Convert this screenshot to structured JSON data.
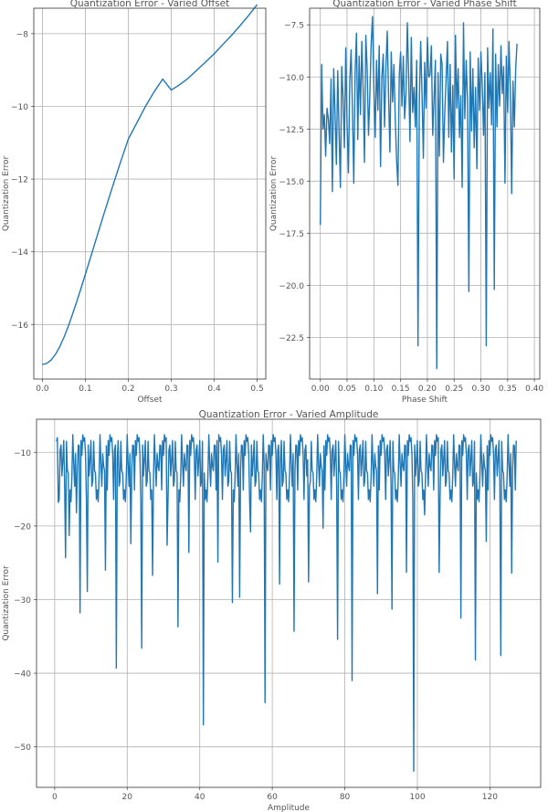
{
  "chart_data": [
    {
      "type": "line",
      "title": "Quantization Error - Varied Offset",
      "xlabel": "Offset",
      "ylabel": "Quantization Error",
      "xlim": [
        -0.02,
        0.52
      ],
      "ylim": [
        -17.5,
        -7.3
      ],
      "xticks": [
        0.0,
        0.1,
        0.2,
        0.3,
        0.4,
        0.5
      ],
      "xtick_labels": [
        "0.0",
        "0.1",
        "0.2",
        "0.3",
        "0.4",
        "0.5"
      ],
      "yticks": [
        -16,
        -14,
        -12,
        -10,
        -8
      ],
      "ytick_labels": [
        "−16",
        "−14",
        "−12",
        "−10",
        "−8"
      ],
      "grid": true,
      "color": "#1f77b4",
      "x": [
        0.0,
        0.01,
        0.02,
        0.03,
        0.04,
        0.05,
        0.06,
        0.07,
        0.08,
        0.09,
        0.1,
        0.12,
        0.14,
        0.16,
        0.18,
        0.2,
        0.22,
        0.24,
        0.26,
        0.28,
        0.3,
        0.32,
        0.34,
        0.36,
        0.38,
        0.4,
        0.42,
        0.44,
        0.46,
        0.48,
        0.5
      ],
      "y": [
        -17.1,
        -17.07,
        -16.98,
        -16.83,
        -16.62,
        -16.36,
        -16.06,
        -15.72,
        -15.37,
        -15.0,
        -14.62,
        -13.85,
        -13.08,
        -12.33,
        -11.6,
        -10.9,
        -10.45,
        -10.0,
        -9.6,
        -9.25,
        -9.55,
        -9.4,
        -9.22,
        -9.0,
        -8.78,
        -8.55,
        -8.3,
        -8.05,
        -7.78,
        -7.5,
        -7.2
      ]
    },
    {
      "type": "line",
      "title": "Quantization Error - Varied Phase Shift",
      "xlabel": "Phase Shift",
      "ylabel": "Quantization Error",
      "xlim": [
        -0.02,
        0.41
      ],
      "ylim": [
        -24.5,
        -6.7
      ],
      "xticks": [
        0.0,
        0.05,
        0.1,
        0.15,
        0.2,
        0.25,
        0.3,
        0.35,
        0.4
      ],
      "xtick_labels": [
        "0.00",
        "0.05",
        "0.10",
        "0.15",
        "0.20",
        "0.25",
        "0.30",
        "0.35",
        "0.40"
      ],
      "yticks": [
        -22.5,
        -20.0,
        -17.5,
        -15.0,
        -12.5,
        -10.0,
        -7.5
      ],
      "ytick_labels": [
        "−22.5",
        "−20.0",
        "−17.5",
        "−15.0",
        "−12.5",
        "−10.0",
        "−7.5"
      ],
      "grid": true,
      "color": "#1f77b4",
      "x_start": 0.0,
      "x_step": 0.0025,
      "y": [
        -17.1,
        -9.4,
        -12.5,
        -11.8,
        -13.8,
        -11.5,
        -12.0,
        -13.2,
        -10.1,
        -15.5,
        -9.6,
        -11.8,
        -14.2,
        -9.7,
        -12.6,
        -15.3,
        -9.5,
        -11.0,
        -13.4,
        -8.6,
        -12.3,
        -14.6,
        -10.2,
        -8.7,
        -11.5,
        -15.1,
        -9.8,
        -7.9,
        -13.0,
        -9.0,
        -11.8,
        -8.3,
        -10.6,
        -14.1,
        -8.0,
        -9.6,
        -12.8,
        -10.9,
        -8.4,
        -7.1,
        -10.5,
        -12.9,
        -9.2,
        -11.6,
        -8.5,
        -14.3,
        -10.0,
        -8.9,
        -12.4,
        -9.6,
        -7.8,
        -10.9,
        -13.6,
        -8.8,
        -11.2,
        -9.4,
        -12.0,
        -14.0,
        -15.2,
        -9.9,
        -8.8,
        -11.4,
        -9.0,
        -12.0,
        -10.8,
        -7.4,
        -9.9,
        -13.1,
        -8.1,
        -11.7,
        -10.5,
        -12.4,
        -9.2,
        -22.9,
        -11.1,
        -8.3,
        -10.8,
        -13.9,
        -9.3,
        -11.5,
        -8.1,
        -10.0,
        -9.9,
        -8.5,
        -12.8,
        -11.0,
        -9.2,
        -24.0,
        -9.8,
        -13.8,
        -8.9,
        -9.4,
        -14.1,
        -11.7,
        -10.1,
        -8.3,
        -12.9,
        -9.4,
        -13.6,
        -10.4,
        -14.9,
        -8.0,
        -11.5,
        -9.6,
        -12.9,
        -10.9,
        -15.3,
        -7.4,
        -12.0,
        -9.2,
        -11.1,
        -20.3,
        -8.8,
        -12.6,
        -9.6,
        -13.4,
        -10.5,
        -14.4,
        -9.1,
        -11.6,
        -8.8,
        -10.4,
        -12.8,
        -9.8,
        -22.9,
        -8.6,
        -11.5,
        -9.8,
        -12.3,
        -7.7,
        -20.2,
        -8.9,
        -12.4,
        -9.4,
        -11.4,
        -8.5,
        -10.8,
        -9.5,
        -15.1,
        -9.0,
        -11.7,
        -8.3,
        -10.6,
        -15.6,
        -10.2,
        -12.4,
        -9.6,
        -8.4
      ]
    },
    {
      "type": "line",
      "title": "Quantization Error - Varied Amplitude",
      "xlabel": "Amplitude",
      "ylabel": "Quantization Error",
      "xlim": [
        -5,
        134
      ],
      "ylim": [
        -55.5,
        -5.5
      ],
      "xticks": [
        0,
        20,
        40,
        60,
        80,
        100,
        120
      ],
      "xtick_labels": [
        "0",
        "20",
        "40",
        "60",
        "80",
        "100",
        "120"
      ],
      "yticks": [
        -50,
        -40,
        -30,
        -20,
        -10
      ],
      "ytick_labels": [
        "−50",
        "−40",
        "−30",
        "−20",
        "−10"
      ],
      "grid": true,
      "color": "#1f77b4",
      "x_start": 0.5,
      "x_step": 0.25,
      "y_base": [
        -8.5,
        -11.8,
        -16.4,
        -9.1,
        -13.2,
        -10.4,
        -14.6,
        -8.0,
        -12.5,
        -9.7,
        -15.1,
        -11.0,
        -7.6,
        -13.9,
        -10.2,
        -12.8,
        -9.0,
        -16.7,
        -8.4,
        -11.5
      ],
      "y_dips": [
        [
          1,
          -16.8
        ],
        [
          3,
          -24.3
        ],
        [
          4,
          -21.3
        ],
        [
          6,
          -18.2
        ],
        [
          7,
          -31.8
        ],
        [
          9,
          -28.9
        ],
        [
          14,
          -26.0
        ],
        [
          17,
          -39.3
        ],
        [
          21,
          -22.4
        ],
        [
          24,
          -36.6
        ],
        [
          27,
          -26.7
        ],
        [
          31,
          -22.6
        ],
        [
          34,
          -33.7
        ],
        [
          37,
          -23.6
        ],
        [
          41,
          -47.0
        ],
        [
          45,
          -24.9
        ],
        [
          49,
          -30.4
        ],
        [
          51,
          -29.7
        ],
        [
          54,
          -20.8
        ],
        [
          58,
          -44.0
        ],
        [
          62,
          -27.9
        ],
        [
          66,
          -34.3
        ],
        [
          70,
          -27.6
        ],
        [
          74,
          -20.3
        ],
        [
          78,
          -35.4
        ],
        [
          82,
          -41.0
        ],
        [
          89,
          -29.2
        ],
        [
          93,
          -31.3
        ],
        [
          97,
          -26.3
        ],
        [
          99,
          -53.3
        ],
        [
          102,
          -18.5
        ],
        [
          106,
          -26.3
        ],
        [
          112,
          -32.5
        ],
        [
          116,
          -38.2
        ],
        [
          119,
          -22.1
        ],
        [
          123,
          -37.6
        ],
        [
          126,
          -26.4
        ]
      ]
    }
  ]
}
